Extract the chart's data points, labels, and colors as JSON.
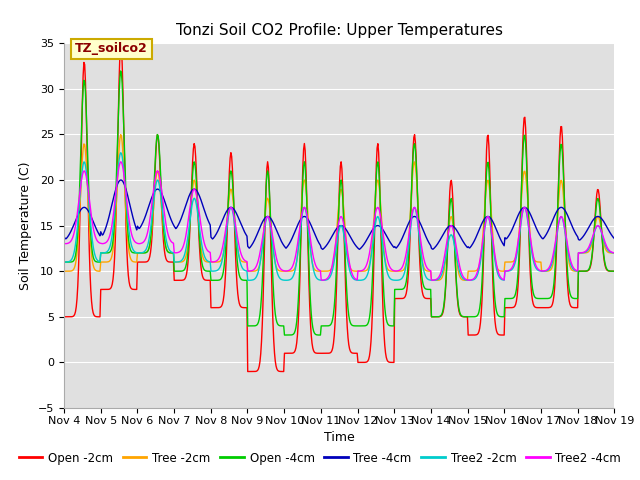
{
  "title": "Tonzi Soil CO2 Profile: Upper Temperatures",
  "xlabel": "Time",
  "ylabel": "Soil Temperature (C)",
  "ylim": [
    -5,
    35
  ],
  "xlim": [
    0,
    15
  ],
  "x_tick_labels": [
    "Nov 4",
    "Nov 5",
    "Nov 6",
    "Nov 7",
    "Nov 8",
    "Nov 9",
    "Nov 10",
    "Nov 11",
    "Nov 12",
    "Nov 13",
    "Nov 14",
    "Nov 15",
    "Nov 16",
    "Nov 17",
    "Nov 18",
    "Nov 19"
  ],
  "annotation_text": "TZ_soilco2",
  "series_colors": [
    "#ff0000",
    "#ffa500",
    "#00cc00",
    "#0000bb",
    "#00cccc",
    "#ff00ff"
  ],
  "series_labels": [
    "Open -2cm",
    "Tree -2cm",
    "Open -4cm",
    "Tree -4cm",
    "Tree2 -2cm",
    "Tree2 -4cm"
  ],
  "background_color": "#e0e0e0",
  "title_fontsize": 11,
  "axis_label_fontsize": 9,
  "tick_fontsize": 8,
  "legend_fontsize": 8.5,
  "linewidth": 1.0
}
